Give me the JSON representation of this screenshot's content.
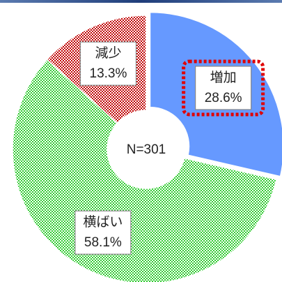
{
  "chart_data": {
    "type": "donut",
    "categories": [
      "増加",
      "横ばい",
      "減少"
    ],
    "values": [
      28.6,
      58.1,
      13.3
    ],
    "value_labels": [
      "28.6%",
      "58.1%",
      "13.3%"
    ],
    "colors": [
      "#6699ff",
      "#33cc33",
      "#c00000"
    ],
    "patterns": [
      "solid",
      "checker",
      "checker"
    ],
    "center_label": "N=301",
    "highlight_index": 0
  }
}
